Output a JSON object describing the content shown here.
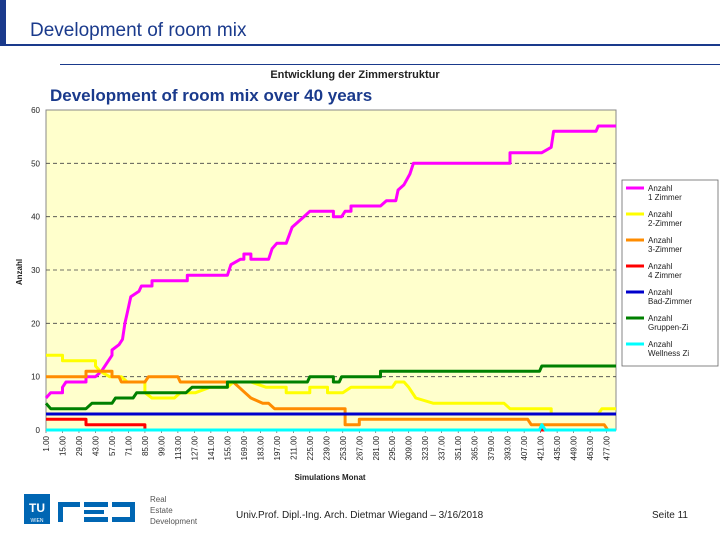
{
  "slide": {
    "title": "Development of room mix",
    "subtitle": "Development of room mix over 40 years",
    "footer": "Univ.Prof. Dipl.-Ing. Arch. Dietmar Wiegand – 3/16/2018",
    "page": "Seite 11",
    "logo": {
      "mark": "TU WIEN",
      "sub": [
        "Real",
        "Estate",
        "Development"
      ]
    }
  },
  "chart_data": {
    "type": "line",
    "title": "Entwicklung der Zimmerstruktur",
    "xlabel": "Simulations Monat",
    "ylabel": "Anzahl",
    "ylim": [
      0,
      60
    ],
    "xlim": [
      1,
      485
    ],
    "yticks": [
      0,
      10,
      20,
      30,
      40,
      50,
      60
    ],
    "xticks": [
      "1.00",
      "15.00",
      "29.00",
      "43.00",
      "57.00",
      "71.00",
      "85.00",
      "99.00",
      "113.00",
      "127.00",
      "141.00",
      "155.00",
      "169.00",
      "183.00",
      "197.00",
      "211.00",
      "225.00",
      "239.00",
      "253.00",
      "267.00",
      "281.00",
      "295.00",
      "309.00",
      "323.00",
      "337.00",
      "351.00",
      "365.00",
      "379.00",
      "393.00",
      "407.00",
      "421.00",
      "435.00",
      "449.00",
      "463.00",
      "477.00"
    ],
    "plot_bg": "#ffffcc",
    "grid": "dashed horizontal",
    "legend_position": "right",
    "series": [
      {
        "name": "Anzahl 1 Zimmer",
        "legend": [
          "Anzahl",
          "1 Zimmer"
        ],
        "color": "#ff00ff",
        "points": [
          [
            1,
            6
          ],
          [
            5,
            7
          ],
          [
            15,
            7
          ],
          [
            15,
            8
          ],
          [
            18,
            9
          ],
          [
            35,
            9
          ],
          [
            35,
            10
          ],
          [
            43,
            10
          ],
          [
            48,
            11
          ],
          [
            57,
            14
          ],
          [
            57,
            15
          ],
          [
            63,
            16
          ],
          [
            66,
            17
          ],
          [
            68,
            20
          ],
          [
            70,
            22
          ],
          [
            73,
            25
          ],
          [
            80,
            26
          ],
          [
            82,
            27
          ],
          [
            91,
            27
          ],
          [
            91,
            28
          ],
          [
            121,
            28
          ],
          [
            121,
            29
          ],
          [
            155,
            29
          ],
          [
            158,
            31
          ],
          [
            166,
            32
          ],
          [
            169,
            32
          ],
          [
            169,
            33
          ],
          [
            175,
            33
          ],
          [
            175,
            32
          ],
          [
            190,
            32
          ],
          [
            193,
            34
          ],
          [
            197,
            35
          ],
          [
            205,
            35
          ],
          [
            210,
            38
          ],
          [
            215,
            39
          ],
          [
            220,
            40
          ],
          [
            225,
            41
          ],
          [
            245,
            41
          ],
          [
            245,
            40
          ],
          [
            252,
            40
          ],
          [
            255,
            41
          ],
          [
            260,
            41
          ],
          [
            260,
            42
          ],
          [
            285,
            42
          ],
          [
            290,
            43
          ],
          [
            298,
            43
          ],
          [
            300,
            45
          ],
          [
            305,
            46
          ],
          [
            310,
            48
          ],
          [
            313,
            50
          ],
          [
            395,
            50
          ],
          [
            395,
            52
          ],
          [
            422,
            52
          ],
          [
            430,
            53
          ],
          [
            432,
            56
          ],
          [
            468,
            56
          ],
          [
            470,
            57
          ],
          [
            485,
            57
          ]
        ]
      },
      {
        "name": "Anzahl 2-Zimmer",
        "legend": [
          "Anzahl",
          "2-Zimmer"
        ],
        "color": "#ffff00",
        "points": [
          [
            1,
            14
          ],
          [
            15,
            14
          ],
          [
            15,
            13
          ],
          [
            43,
            13
          ],
          [
            43,
            12
          ],
          [
            47,
            11
          ],
          [
            55,
            10
          ],
          [
            65,
            10
          ],
          [
            70,
            9
          ],
          [
            85,
            9
          ],
          [
            85,
            7
          ],
          [
            91,
            6
          ],
          [
            110,
            6
          ],
          [
            115,
            7
          ],
          [
            125,
            7
          ],
          [
            128,
            7
          ],
          [
            140,
            8
          ],
          [
            155,
            8
          ],
          [
            160,
            9
          ],
          [
            175,
            9
          ],
          [
            188,
            8
          ],
          [
            205,
            8
          ],
          [
            205,
            7
          ],
          [
            225,
            7
          ],
          [
            225,
            8
          ],
          [
            240,
            8
          ],
          [
            240,
            7
          ],
          [
            253,
            7
          ],
          [
            260,
            8
          ],
          [
            295,
            8
          ],
          [
            298,
            9
          ],
          [
            305,
            9
          ],
          [
            309,
            8
          ],
          [
            315,
            6
          ],
          [
            330,
            5
          ],
          [
            390,
            5
          ],
          [
            395,
            4
          ],
          [
            430,
            4
          ],
          [
            430,
            3
          ],
          [
            470,
            3
          ],
          [
            473,
            4
          ],
          [
            485,
            4
          ]
        ]
      },
      {
        "name": "Anzahl 3-Zimmer",
        "legend": [
          "Anzahl",
          "3-Zimmer"
        ],
        "color": "#ff8c00",
        "points": [
          [
            1,
            10
          ],
          [
            35,
            10
          ],
          [
            35,
            11
          ],
          [
            57,
            11
          ],
          [
            57,
            10
          ],
          [
            63,
            10
          ],
          [
            65,
            9
          ],
          [
            85,
            9
          ],
          [
            88,
            10
          ],
          [
            113,
            10
          ],
          [
            115,
            9
          ],
          [
            160,
            9
          ],
          [
            165,
            8
          ],
          [
            170,
            7
          ],
          [
            175,
            6
          ],
          [
            185,
            5
          ],
          [
            190,
            5
          ],
          [
            195,
            4
          ],
          [
            255,
            4
          ],
          [
            255,
            1
          ],
          [
            267,
            1
          ],
          [
            267,
            2
          ],
          [
            410,
            2
          ],
          [
            413,
            1
          ],
          [
            475,
            1
          ],
          [
            478,
            0
          ]
        ]
      },
      {
        "name": "Anzahl 4 Zimmer",
        "legend": [
          "Anzahl",
          "4 Zimmer"
        ],
        "color": "#ff0000",
        "points": [
          [
            1,
            2
          ],
          [
            35,
            2
          ],
          [
            35,
            1
          ],
          [
            85,
            1
          ],
          [
            85,
            0
          ],
          [
            485,
            0
          ]
        ]
      },
      {
        "name": "Anzahl Bad-Zimmer",
        "legend": [
          "Anzahl",
          "Bad-Zimmer"
        ],
        "color": "#0000cc",
        "points": [
          [
            1,
            3
          ],
          [
            485,
            3
          ]
        ]
      },
      {
        "name": "Anzahl Gruppen-Zi",
        "legend": [
          "Anzahl",
          "Gruppen-Zi"
        ],
        "color": "#008000",
        "points": [
          [
            1,
            5
          ],
          [
            5,
            4
          ],
          [
            35,
            4
          ],
          [
            40,
            5
          ],
          [
            57,
            5
          ],
          [
            60,
            6
          ],
          [
            75,
            6
          ],
          [
            78,
            7
          ],
          [
            120,
            7
          ],
          [
            125,
            8
          ],
          [
            155,
            8
          ],
          [
            155,
            9
          ],
          [
            200,
            9
          ],
          [
            205,
            9
          ],
          [
            223,
            9
          ],
          [
            225,
            10
          ],
          [
            245,
            10
          ],
          [
            245,
            9
          ],
          [
            250,
            9
          ],
          [
            252,
            10
          ],
          [
            285,
            10
          ],
          [
            285,
            11
          ],
          [
            375,
            11
          ],
          [
            375,
            11
          ],
          [
            420,
            11
          ],
          [
            422,
            12
          ],
          [
            485,
            12
          ]
        ]
      },
      {
        "name": "Anzahl Wellness Zi",
        "legend": [
          "Anzahl",
          "Wellness Zi"
        ],
        "color": "#00ffff",
        "points": [
          [
            1,
            0
          ],
          [
            420,
            0
          ],
          [
            422,
            1
          ],
          [
            425,
            0
          ],
          [
            485,
            0
          ]
        ]
      }
    ]
  }
}
